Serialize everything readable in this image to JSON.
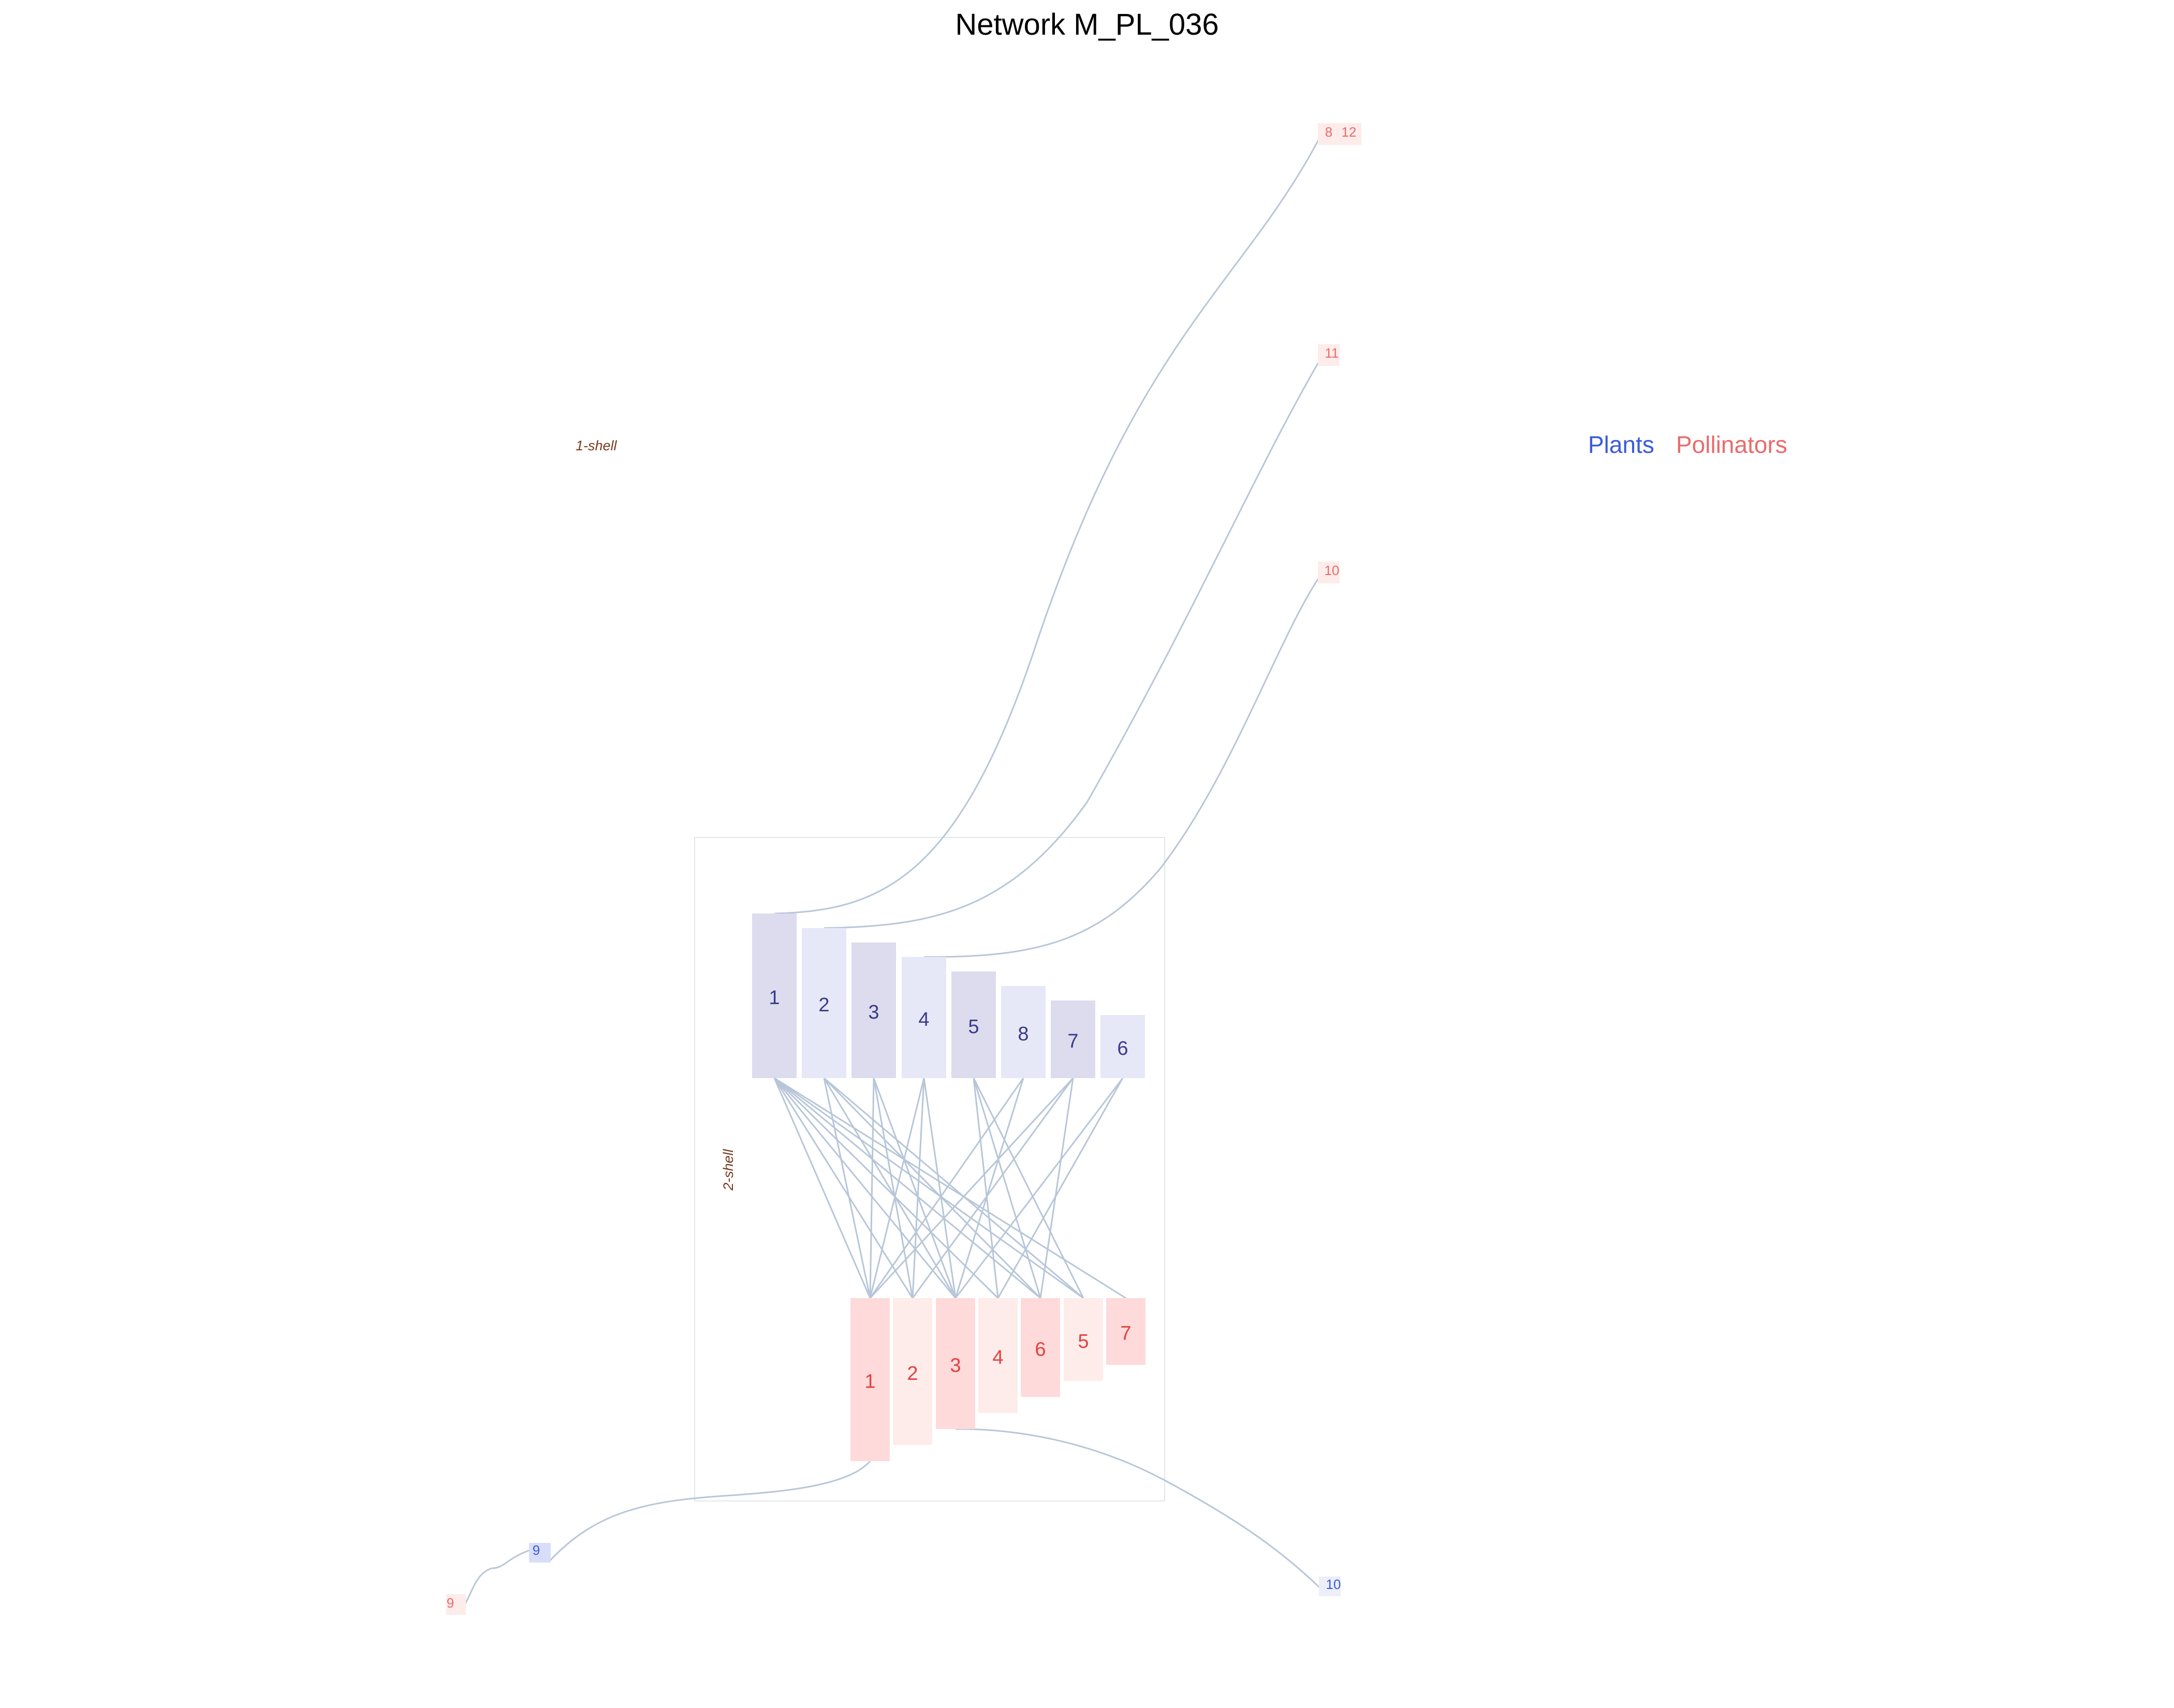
{
  "title": "Network M_PL_036",
  "legend": {
    "plants": "Plants",
    "pollinators": "Pollinators"
  },
  "shells": {
    "outer": "1-shell",
    "core": "2-shell"
  },
  "colors": {
    "plant_label": "#3a3a8c",
    "pollinator_label": "#e2413f",
    "link": "#b7c6d8",
    "plant_fill_dark": "#dcdcee",
    "plant_fill_light": "#e6e8f8",
    "poll_fill_dark": "#ffdada",
    "poll_fill_light": "#fdecea",
    "legend_plants": "#3a5bd9",
    "legend_pollinators": "#e96b6b",
    "shell_label": "#7a3a1e"
  },
  "core_plants": [
    "1",
    "2",
    "3",
    "4",
    "5",
    "8",
    "7",
    "6"
  ],
  "core_pollinators": [
    "1",
    "2",
    "3",
    "4",
    "6",
    "5",
    "7"
  ],
  "outer_pollinators": [
    "8",
    "12",
    "11",
    "10",
    "9"
  ],
  "outer_plants": [
    "9",
    "10"
  ],
  "core_links": [
    [
      "1",
      "1"
    ],
    [
      "1",
      "2"
    ],
    [
      "1",
      "3"
    ],
    [
      "1",
      "4"
    ],
    [
      "1",
      "6"
    ],
    [
      "1",
      "5"
    ],
    [
      "1",
      "7"
    ],
    [
      "2",
      "1"
    ],
    [
      "2",
      "3"
    ],
    [
      "2",
      "6"
    ],
    [
      "2",
      "5"
    ],
    [
      "3",
      "1"
    ],
    [
      "3",
      "2"
    ],
    [
      "3",
      "3"
    ],
    [
      "4",
      "1"
    ],
    [
      "4",
      "2"
    ],
    [
      "4",
      "3"
    ],
    [
      "5",
      "4"
    ],
    [
      "5",
      "6"
    ],
    [
      "5",
      "5"
    ],
    [
      "8",
      "1"
    ],
    [
      "8",
      "3"
    ],
    [
      "7",
      "1"
    ],
    [
      "7",
      "2"
    ],
    [
      "7",
      "6"
    ],
    [
      "6",
      "4"
    ],
    [
      "6",
      "3"
    ]
  ],
  "outer_links": [
    {
      "from": "plant-1",
      "to": "pollinator-8"
    },
    {
      "from": "plant-2",
      "to": "pollinator-11"
    },
    {
      "from": "plant-4",
      "to": "pollinator-10"
    },
    {
      "from": "pollinator-1",
      "to": "plant-9"
    },
    {
      "from": "plant-9",
      "to": "pollinator-9"
    },
    {
      "from": "pollinator-3",
      "to": "plant-10"
    }
  ]
}
